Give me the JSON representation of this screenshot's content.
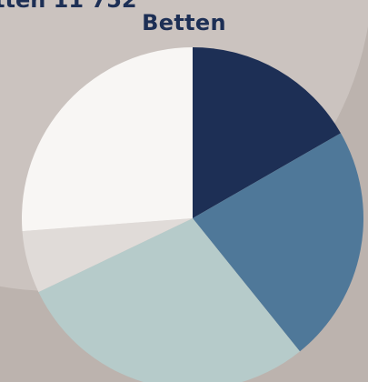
{
  "header": {
    "cut_label": "tten 11 752"
  },
  "chart_data": {
    "type": "pie",
    "title": "Betten",
    "slices": [
      {
        "value": 16.7,
        "color": "#1d2f55"
      },
      {
        "value": 22.5,
        "color": "#4f7899"
      },
      {
        "value": 28.7,
        "color": "#b6cbca"
      },
      {
        "value": 5.9,
        "color": "#e0dbd8"
      },
      {
        "value": 26.2,
        "color": "#f8f6f4"
      }
    ]
  }
}
